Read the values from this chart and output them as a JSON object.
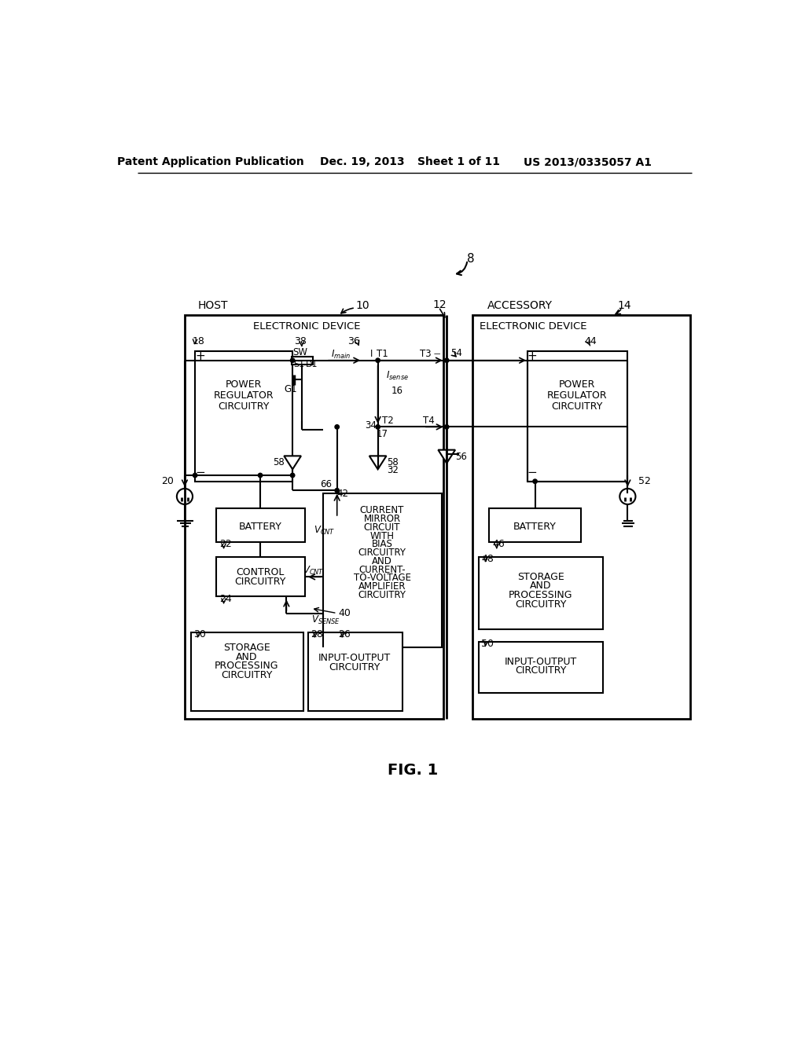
{
  "background_color": "#ffffff",
  "header_text": "Patent Application Publication",
  "header_date": "Dec. 19, 2013",
  "header_sheet": "Sheet 1 of 11",
  "header_patent": "US 2013/0335057 A1",
  "figure_label": "FIG. 1"
}
